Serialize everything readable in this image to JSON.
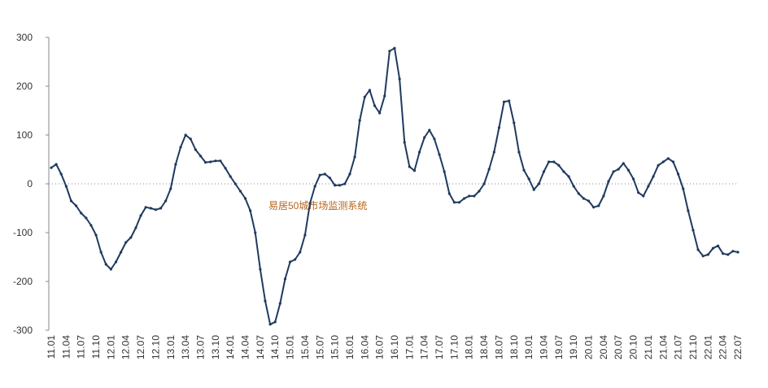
{
  "chart_data": {
    "type": "line",
    "annotation": "易居50城市场监测系统",
    "categories": [
      "11.01",
      null,
      null,
      "11.04",
      null,
      null,
      "11.07",
      null,
      null,
      "11.10",
      null,
      null,
      "12.01",
      null,
      null,
      "12.04",
      null,
      null,
      "12.07",
      null,
      null,
      "12.10",
      null,
      null,
      "13.01",
      null,
      null,
      "13.04",
      null,
      null,
      "13.07",
      null,
      null,
      "13.10",
      null,
      null,
      "14.01",
      null,
      null,
      "14.04",
      null,
      null,
      "14.07",
      null,
      null,
      "14.10",
      null,
      null,
      "15.01",
      null,
      null,
      "15.04",
      null,
      null,
      "15.07",
      null,
      null,
      "15.10",
      null,
      null,
      "16.01",
      null,
      null,
      "16.04",
      null,
      null,
      "16.07",
      null,
      null,
      "16.10",
      null,
      null,
      "17.01",
      null,
      null,
      "17.04",
      null,
      null,
      "17.07",
      null,
      null,
      "17.10",
      null,
      null,
      "18.01",
      null,
      null,
      "18.04",
      null,
      null,
      "18.07",
      null,
      null,
      "18.10",
      null,
      null,
      "19.01",
      null,
      null,
      "19.04",
      null,
      null,
      "19.07",
      null,
      null,
      "19.10",
      null,
      null,
      "20.01",
      null,
      null,
      "20.04",
      null,
      null,
      "20.07",
      null,
      null,
      "20.10",
      null,
      null,
      "21.01",
      null,
      null,
      "21.04",
      null,
      null,
      "21.07",
      null,
      null,
      "21.10",
      null,
      null,
      "22.01",
      null,
      null,
      "22.04",
      null,
      null,
      "22.07"
    ],
    "series": [
      {
        "color": "#1f3a5f",
        "values": [
          33,
          40,
          20,
          -5,
          -35,
          -45,
          -60,
          -70,
          -85,
          -105,
          -140,
          -165,
          -175,
          -160,
          -140,
          -120,
          -110,
          -90,
          -65,
          -48,
          -50,
          -53,
          -50,
          -35,
          -10,
          40,
          75,
          100,
          92,
          70,
          57,
          44,
          45,
          47,
          47,
          32,
          15,
          0,
          -15,
          -30,
          -55,
          -100,
          -175,
          -240,
          -288,
          -283,
          -245,
          -195,
          -160,
          -155,
          -140,
          -105,
          -40,
          -5,
          18,
          20,
          12,
          -3,
          -3,
          0,
          20,
          55,
          130,
          178,
          192,
          160,
          145,
          180,
          272,
          278,
          215,
          85,
          35,
          27,
          65,
          95,
          110,
          92,
          60,
          25,
          -20,
          -38,
          -38,
          -30,
          -25,
          -25,
          -15,
          0,
          30,
          65,
          115,
          168,
          170,
          125,
          65,
          28,
          10,
          -12,
          0,
          25,
          45,
          45,
          38,
          25,
          15,
          -5,
          -20,
          -30,
          -35,
          -48,
          -45,
          -25,
          5,
          25,
          30,
          42,
          28,
          10,
          -18,
          -25,
          -5,
          15,
          38,
          45,
          52,
          45,
          20,
          -10,
          -55,
          -95,
          -135,
          -148,
          -145,
          -132,
          -127,
          -143,
          -145,
          -138,
          -140
        ]
      }
    ],
    "ylim": [
      -300,
      300
    ],
    "yticks": [
      300,
      200,
      100,
      0,
      -100,
      -200,
      -300
    ],
    "grid": false
  }
}
